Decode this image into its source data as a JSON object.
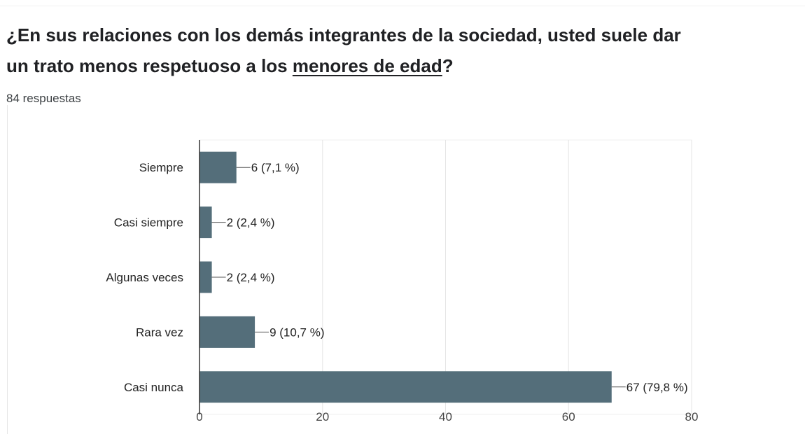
{
  "question": {
    "title_before": "¿En sus relaciones con los demás integrantes de la sociedad, usted suele dar un trato menos respetuoso a los ",
    "title_underlined": "menores de edad",
    "title_after": "?",
    "responses": "84 respuestas"
  },
  "colors": {
    "bar": "#546e7a",
    "grid": "#e5e5e5",
    "axis": "#333333",
    "text": "#222222"
  },
  "chart_data": {
    "type": "bar",
    "orientation": "horizontal",
    "categories": [
      "Siempre",
      "Casi siempre",
      "Algunas veces",
      "Rara vez",
      "Casi nunca"
    ],
    "values": [
      6,
      2,
      2,
      9,
      67
    ],
    "labels": [
      "6 (7,1 %)",
      "2 (2,4 %)",
      "2 (2,4 %)",
      "9 (10,7 %)",
      "67 (79,8 %)"
    ],
    "xlim": [
      0,
      80
    ],
    "xticks": [
      0,
      20,
      40,
      60,
      80
    ],
    "grid": true,
    "legend": "none"
  }
}
